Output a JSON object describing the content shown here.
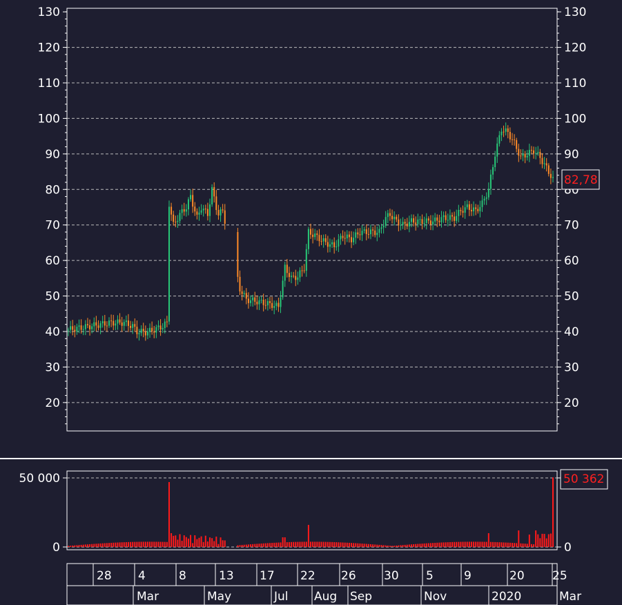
{
  "colors": {
    "background": "#1e1e30",
    "frame": "#ffffff",
    "grid": "#bcbcbc",
    "up": "#28c878",
    "down": "#ff8c28",
    "volume": "#ff1a1a",
    "price_label": "#ff2020"
  },
  "last_price_label": "82,78",
  "last_volume_label": "50 362",
  "chart_data": [
    {
      "type": "candlestick",
      "title": "",
      "xlabel": "",
      "ylabel": "",
      "ylim": [
        12,
        131
      ],
      "yticks": [
        130,
        120,
        110,
        100,
        90,
        80,
        70,
        60,
        50,
        40,
        30,
        20
      ],
      "ytick_labels": [
        "130",
        "120",
        "110",
        "100",
        "90",
        "80",
        "70",
        "60",
        "50",
        "40",
        "30",
        "20"
      ],
      "grid": true,
      "last_value": 82.78,
      "close_series": {
        "x": [
          0,
          10,
          20,
          30,
          40,
          50,
          60,
          70,
          80,
          90,
          95,
          100,
          104,
          106,
          110,
          120,
          125,
          130,
          140,
          145,
          148,
          152,
          158,
          162,
          165,
          170,
          175,
          180,
          190,
          200,
          210,
          220,
          230,
          240,
          248,
          250,
          252,
          255,
          258,
          260,
          265,
          270,
          275,
          280,
          285,
          290,
          296,
          300,
          305,
          310,
          315,
          320,
          325,
          330,
          335,
          340,
          345,
          350,
          360,
          370,
          380,
          390,
          395,
          400,
          405,
          410,
          414,
          418,
          425,
          430,
          435,
          440,
          445,
          450
        ],
        "values": [
          40.5,
          41.5,
          42.5,
          43,
          42,
          40,
          40.5,
          41.5,
          42.5,
          76,
          73,
          72,
          74,
          76,
          75,
          78,
          76,
          74,
          52,
          50,
          49,
          48,
          47.5,
          47,
          56,
          55,
          56,
          69,
          66,
          64,
          67,
          68,
          68,
          73,
          71,
          69,
          70,
          71,
          71,
          71,
          72,
          73,
          75,
          74,
          78,
          90,
          97,
          96,
          94,
          90,
          89,
          91,
          90,
          89,
          85,
          80,
          82.78,
          82.78,
          82.78,
          82.78,
          82.78,
          82.78,
          82.78,
          82.78,
          82.78,
          82.78,
          82.78,
          82.78,
          82.78,
          82.78,
          82.78,
          82.78,
          82.78,
          82.78
        ]
      }
    },
    {
      "type": "bar",
      "title": "",
      "ylim": [
        0,
        55000
      ],
      "yticks": [
        50000,
        0
      ],
      "ytick_labels": [
        "50 000",
        "0"
      ],
      "last_value": 50362
    }
  ],
  "xaxis_row1": [
    "28",
    "4",
    "8",
    "13",
    "17",
    "22",
    "26",
    "30",
    "5",
    "9",
    "20",
    "25"
  ],
  "xaxis_row2": [
    "Mar",
    "May",
    "Jul",
    "Aug",
    "Sep",
    "Nov",
    "2020",
    "Mar"
  ]
}
